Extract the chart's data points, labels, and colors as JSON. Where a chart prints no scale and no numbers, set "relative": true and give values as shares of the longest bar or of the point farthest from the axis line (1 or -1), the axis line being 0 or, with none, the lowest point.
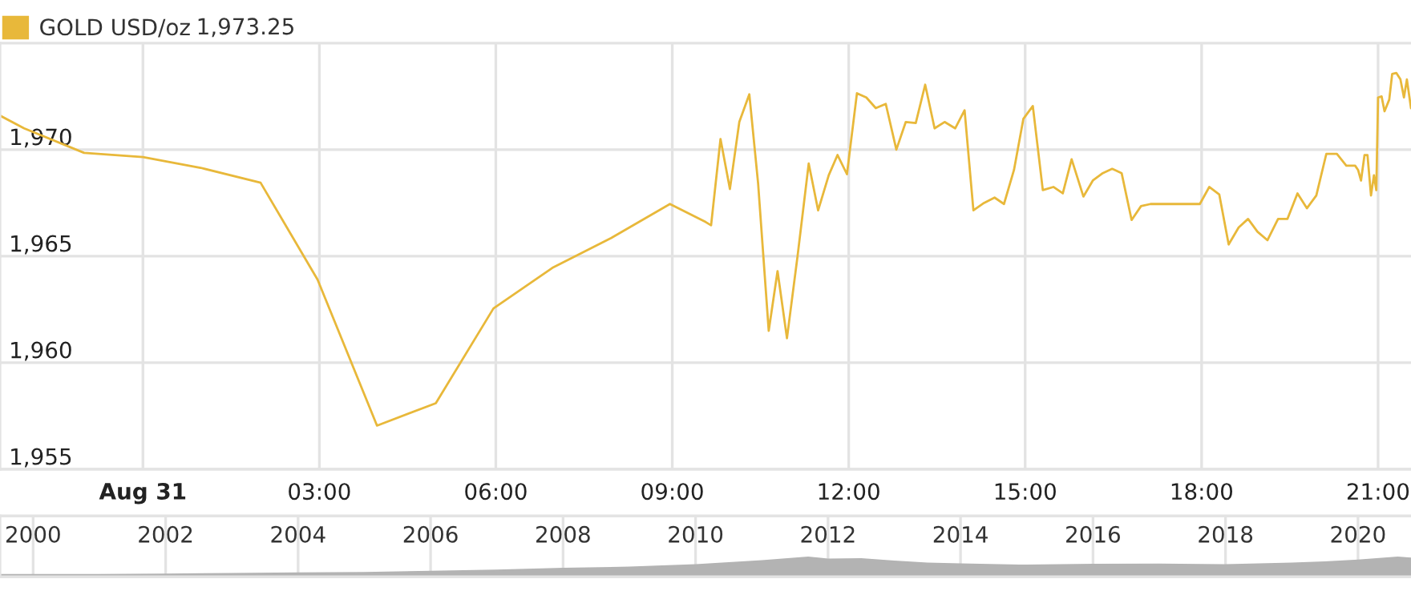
{
  "chart_data": [
    {
      "type": "line",
      "legend": "top left",
      "grid": true,
      "marker": "none",
      "line_style": "solid",
      "annotations": [
        "1,973.25"
      ],
      "xlim": [
        -2.43,
        21.56
      ],
      "xticks": [
        {
          "value": 0,
          "label": "Aug 31"
        },
        {
          "value": 3,
          "label": "03:00"
        },
        {
          "value": 6,
          "label": "06:00"
        },
        {
          "value": 9,
          "label": "09:00"
        },
        {
          "value": 12,
          "label": "12:00"
        },
        {
          "value": 15,
          "label": "15:00"
        },
        {
          "value": 18,
          "label": "18:00"
        },
        {
          "value": 21,
          "label": "21:00"
        }
      ],
      "ylim": [
        1955,
        1975
      ],
      "yticks": [
        {
          "value": 1955,
          "label": "1,955"
        },
        {
          "value": 1960,
          "label": "1,960"
        },
        {
          "value": 1965,
          "label": "1,965"
        },
        {
          "value": 1970,
          "label": "1,970"
        }
      ],
      "series": [
        {
          "name": "GOLD USD/oz",
          "color": "#e8b83a",
          "x": [
            -2.43,
            -2.02,
            -1.0,
            0,
            0.98,
            2.0,
            2.97,
            3.98,
            4.98,
            5.96,
            6.96,
            7.96,
            8.96,
            9.57,
            9.66,
            9.82,
            9.98,
            10.14,
            10.31,
            10.46,
            10.64,
            10.79,
            10.95,
            11.13,
            11.32,
            11.48,
            11.66,
            11.81,
            11.97,
            12.14,
            12.3,
            12.46,
            12.63,
            12.81,
            12.97,
            13.14,
            13.3,
            13.46,
            13.63,
            13.81,
            13.97,
            14.12,
            14.3,
            14.48,
            14.64,
            14.81,
            14.97,
            15.13,
            15.3,
            15.48,
            15.64,
            15.79,
            15.99,
            16.15,
            16.32,
            16.48,
            16.64,
            16.81,
            16.97,
            17.13,
            17.97,
            18.13,
            18.3,
            18.46,
            18.63,
            18.79,
            18.95,
            19.12,
            19.3,
            19.46,
            19.63,
            19.79,
            19.95,
            20.12,
            20.3,
            20.46,
            20.61,
            20.66,
            20.71,
            20.77,
            20.82,
            20.88,
            20.93,
            20.97,
            21.0,
            21.06,
            21.11,
            21.19,
            21.24,
            21.31,
            21.38,
            21.44,
            21.49,
            21.56
          ],
          "values": [
            1971.6,
            1971.0,
            1969.85,
            1969.65,
            1969.15,
            1968.45,
            1963.9,
            1957.05,
            1958.1,
            1962.55,
            1964.45,
            1965.85,
            1967.45,
            1966.6,
            1966.45,
            1970.5,
            1968.15,
            1971.3,
            1972.6,
            1968.4,
            1961.5,
            1964.3,
            1961.15,
            1965.0,
            1969.35,
            1967.15,
            1968.8,
            1969.75,
            1968.85,
            1972.65,
            1972.45,
            1971.95,
            1972.15,
            1970.0,
            1971.3,
            1971.25,
            1973.05,
            1971.0,
            1971.3,
            1971.0,
            1971.85,
            1967.15,
            1967.5,
            1967.75,
            1967.45,
            1969.05,
            1971.45,
            1972.05,
            1968.1,
            1968.25,
            1967.95,
            1969.55,
            1967.8,
            1968.55,
            1968.9,
            1969.1,
            1968.9,
            1966.7,
            1967.35,
            1967.45,
            1967.45,
            1968.25,
            1967.9,
            1965.55,
            1966.35,
            1966.75,
            1966.15,
            1965.75,
            1966.75,
            1966.75,
            1967.95,
            1967.25,
            1967.85,
            1969.8,
            1969.8,
            1969.25,
            1969.25,
            1969.05,
            1968.55,
            1969.75,
            1969.75,
            1967.85,
            1968.8,
            1968.1,
            1972.45,
            1972.5,
            1971.8,
            1972.35,
            1973.55,
            1973.6,
            1973.3,
            1972.45,
            1973.3,
            1971.95
          ]
        }
      ]
    },
    {
      "type": "area",
      "relative": true,
      "tick_labels": "x",
      "grid": "x",
      "xlim": [
        1999.5,
        2020.8
      ],
      "xticks": [
        2000,
        2002,
        2004,
        2006,
        2008,
        2010,
        2012,
        2014,
        2016,
        2018,
        2020
      ],
      "series": [
        {
          "color": "#b3b3b3",
          "x": [
            1999.5,
            2001,
            2002,
            2003,
            2004,
            2005,
            2006,
            2007,
            2008,
            2009,
            2010,
            2011,
            2011.7,
            2012,
            2012.5,
            2013,
            2013.5,
            2014,
            2015,
            2016,
            2017,
            2018,
            2019,
            2019.5,
            2020,
            2020.6,
            2020.8
          ],
          "values": [
            0.14,
            0.14,
            0.16,
            0.19,
            0.22,
            0.24,
            0.3,
            0.36,
            0.45,
            0.5,
            0.62,
            0.82,
            1.0,
            0.9,
            0.92,
            0.8,
            0.7,
            0.66,
            0.6,
            0.64,
            0.65,
            0.62,
            0.7,
            0.76,
            0.85,
            1.0,
            0.95
          ]
        }
      ]
    }
  ]
}
